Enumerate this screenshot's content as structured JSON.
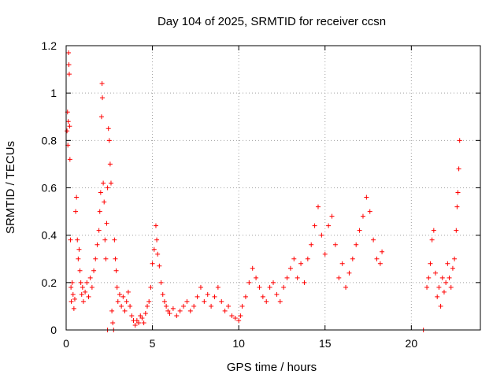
{
  "chart_data": {
    "type": "scatter",
    "title": "Day 104 of 2025, SRMTID for receiver ccsn",
    "xlabel": "GPS time / hours",
    "ylabel": "SRMTID / TECUs",
    "xlim": [
      0,
      24
    ],
    "ylim": [
      0,
      1.2
    ],
    "xticks": [
      0,
      5,
      10,
      15,
      20
    ],
    "yticks": [
      0,
      0.2,
      0.4,
      0.6,
      0.8,
      1,
      1.2
    ],
    "xtick_labels": [
      "0",
      "5",
      "10",
      "15",
      "20"
    ],
    "ytick_labels": [
      "0",
      "0.2",
      "0.4",
      "0.6",
      "0.8",
      "1",
      "1.2"
    ],
    "grid": true,
    "marker": "plus",
    "marker_color": "#ff0000",
    "series": [
      {
        "name": "SRMTID",
        "points": [
          [
            0.05,
            0.84
          ],
          [
            0.08,
            0.92
          ],
          [
            0.1,
            0.78
          ],
          [
            0.12,
            0.88
          ],
          [
            0.14,
            1.17
          ],
          [
            0.16,
            1.12
          ],
          [
            0.18,
            1.08
          ],
          [
            0.2,
            0.86
          ],
          [
            0.22,
            0.72
          ],
          [
            0.25,
            0.38
          ],
          [
            0.28,
            0.18
          ],
          [
            0.3,
            0.12
          ],
          [
            0.35,
            0.2
          ],
          [
            0.4,
            0.15
          ],
          [
            0.45,
            0.09
          ],
          [
            0.5,
            0.13
          ],
          [
            0.55,
            0.5
          ],
          [
            0.6,
            0.56
          ],
          [
            0.65,
            0.38
          ],
          [
            0.7,
            0.3
          ],
          [
            0.75,
            0.34
          ],
          [
            0.8,
            0.25
          ],
          [
            0.85,
            0.2
          ],
          [
            0.9,
            0.15
          ],
          [
            0.95,
            0.18
          ],
          [
            1.0,
            0.12
          ],
          [
            1.1,
            0.16
          ],
          [
            1.2,
            0.2
          ],
          [
            1.3,
            0.14
          ],
          [
            1.4,
            0.22
          ],
          [
            1.5,
            0.18
          ],
          [
            1.6,
            0.25
          ],
          [
            1.7,
            0.3
          ],
          [
            1.8,
            0.36
          ],
          [
            1.9,
            0.42
          ],
          [
            1.95,
            0.5
          ],
          [
            2.0,
            0.58
          ],
          [
            2.05,
            0.9
          ],
          [
            2.08,
            1.04
          ],
          [
            2.1,
            0.98
          ],
          [
            2.15,
            0.62
          ],
          [
            2.2,
            0.54
          ],
          [
            2.25,
            0.38
          ],
          [
            2.3,
            0.3
          ],
          [
            2.35,
            0.45
          ],
          [
            2.4,
            0.6
          ],
          [
            2.45,
            0.85
          ],
          [
            2.5,
            0.8
          ],
          [
            2.55,
            0.7
          ],
          [
            2.6,
            0.62
          ],
          [
            2.4,
            0.0
          ],
          [
            2.65,
            0.08
          ],
          [
            2.7,
            0.03
          ],
          [
            2.75,
            0.0
          ],
          [
            2.8,
            0.38
          ],
          [
            2.85,
            0.3
          ],
          [
            2.9,
            0.25
          ],
          [
            2.95,
            0.18
          ],
          [
            3.0,
            0.12
          ],
          [
            3.1,
            0.15
          ],
          [
            3.2,
            0.1
          ],
          [
            3.3,
            0.14
          ],
          [
            3.4,
            0.08
          ],
          [
            3.5,
            0.12
          ],
          [
            3.6,
            0.16
          ],
          [
            3.7,
            0.1
          ],
          [
            3.8,
            0.06
          ],
          [
            3.9,
            0.04
          ],
          [
            4.0,
            0.02
          ],
          [
            4.1,
            0.04
          ],
          [
            4.2,
            0.03
          ],
          [
            4.3,
            0.06
          ],
          [
            4.4,
            0.05
          ],
          [
            4.5,
            0.03
          ],
          [
            4.6,
            0.07
          ],
          [
            4.7,
            0.1
          ],
          [
            4.8,
            0.12
          ],
          [
            4.9,
            0.18
          ],
          [
            5.0,
            0.28
          ],
          [
            5.1,
            0.34
          ],
          [
            5.2,
            0.44
          ],
          [
            5.25,
            0.38
          ],
          [
            5.3,
            0.32
          ],
          [
            5.4,
            0.27
          ],
          [
            5.5,
            0.2
          ],
          [
            5.6,
            0.15
          ],
          [
            5.7,
            0.12
          ],
          [
            5.8,
            0.1
          ],
          [
            5.9,
            0.08
          ],
          [
            6.0,
            0.07
          ],
          [
            6.2,
            0.09
          ],
          [
            6.4,
            0.06
          ],
          [
            6.6,
            0.08
          ],
          [
            6.8,
            0.1
          ],
          [
            7.0,
            0.12
          ],
          [
            7.2,
            0.08
          ],
          [
            7.4,
            0.1
          ],
          [
            7.6,
            0.14
          ],
          [
            7.8,
            0.18
          ],
          [
            8.0,
            0.12
          ],
          [
            8.2,
            0.15
          ],
          [
            8.4,
            0.1
          ],
          [
            8.6,
            0.14
          ],
          [
            8.8,
            0.18
          ],
          [
            9.0,
            0.12
          ],
          [
            9.2,
            0.08
          ],
          [
            9.4,
            0.1
          ],
          [
            9.6,
            0.06
          ],
          [
            9.8,
            0.05
          ],
          [
            10.0,
            0.04
          ],
          [
            10.1,
            0.06
          ],
          [
            10.2,
            0.1
          ],
          [
            10.4,
            0.14
          ],
          [
            10.6,
            0.2
          ],
          [
            10.8,
            0.26
          ],
          [
            11.0,
            0.22
          ],
          [
            11.2,
            0.18
          ],
          [
            11.4,
            0.14
          ],
          [
            11.6,
            0.12
          ],
          [
            11.8,
            0.18
          ],
          [
            12.0,
            0.2
          ],
          [
            12.2,
            0.15
          ],
          [
            12.4,
            0.12
          ],
          [
            12.6,
            0.18
          ],
          [
            12.8,
            0.22
          ],
          [
            13.0,
            0.26
          ],
          [
            13.2,
            0.3
          ],
          [
            13.4,
            0.22
          ],
          [
            13.6,
            0.28
          ],
          [
            13.8,
            0.2
          ],
          [
            14.0,
            0.3
          ],
          [
            14.2,
            0.36
          ],
          [
            14.4,
            0.44
          ],
          [
            14.6,
            0.52
          ],
          [
            14.8,
            0.4
          ],
          [
            15.0,
            0.32
          ],
          [
            15.2,
            0.44
          ],
          [
            15.4,
            0.48
          ],
          [
            15.6,
            0.36
          ],
          [
            15.8,
            0.22
          ],
          [
            16.0,
            0.28
          ],
          [
            16.2,
            0.18
          ],
          [
            16.4,
            0.24
          ],
          [
            16.6,
            0.3
          ],
          [
            16.8,
            0.36
          ],
          [
            17.0,
            0.42
          ],
          [
            17.2,
            0.48
          ],
          [
            17.4,
            0.56
          ],
          [
            17.6,
            0.5
          ],
          [
            17.8,
            0.38
          ],
          [
            18.0,
            0.3
          ],
          [
            18.2,
            0.28
          ],
          [
            18.3,
            0.33
          ],
          [
            20.7,
            0.0
          ],
          [
            20.9,
            0.18
          ],
          [
            21.0,
            0.22
          ],
          [
            21.1,
            0.28
          ],
          [
            21.2,
            0.38
          ],
          [
            21.3,
            0.42
          ],
          [
            21.4,
            0.24
          ],
          [
            21.5,
            0.14
          ],
          [
            21.6,
            0.18
          ],
          [
            21.7,
            0.1
          ],
          [
            21.8,
            0.22
          ],
          [
            21.9,
            0.16
          ],
          [
            22.0,
            0.2
          ],
          [
            22.1,
            0.28
          ],
          [
            22.2,
            0.22
          ],
          [
            22.3,
            0.18
          ],
          [
            22.4,
            0.26
          ],
          [
            22.5,
            0.3
          ],
          [
            22.6,
            0.42
          ],
          [
            22.65,
            0.52
          ],
          [
            22.7,
            0.58
          ],
          [
            22.75,
            0.68
          ],
          [
            22.8,
            0.8
          ]
        ]
      }
    ]
  }
}
